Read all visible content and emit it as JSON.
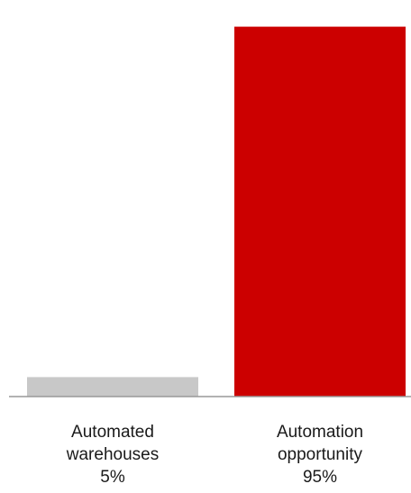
{
  "chart_data": {
    "type": "bar",
    "categories": [
      [
        "Automated",
        "warehouses",
        "5%"
      ],
      [
        "Automation",
        "opportunity",
        "95%"
      ]
    ],
    "values": [
      5,
      95
    ],
    "value_unit": "%",
    "ylim": [
      0,
      100
    ],
    "title": "",
    "xlabel": "",
    "ylabel": "",
    "grid": false,
    "legend": "none",
    "colors": {
      "bars": [
        "#c8c8c8",
        "#cc0000"
      ],
      "baseline": "#999999",
      "text": "#1a1a1a"
    }
  }
}
